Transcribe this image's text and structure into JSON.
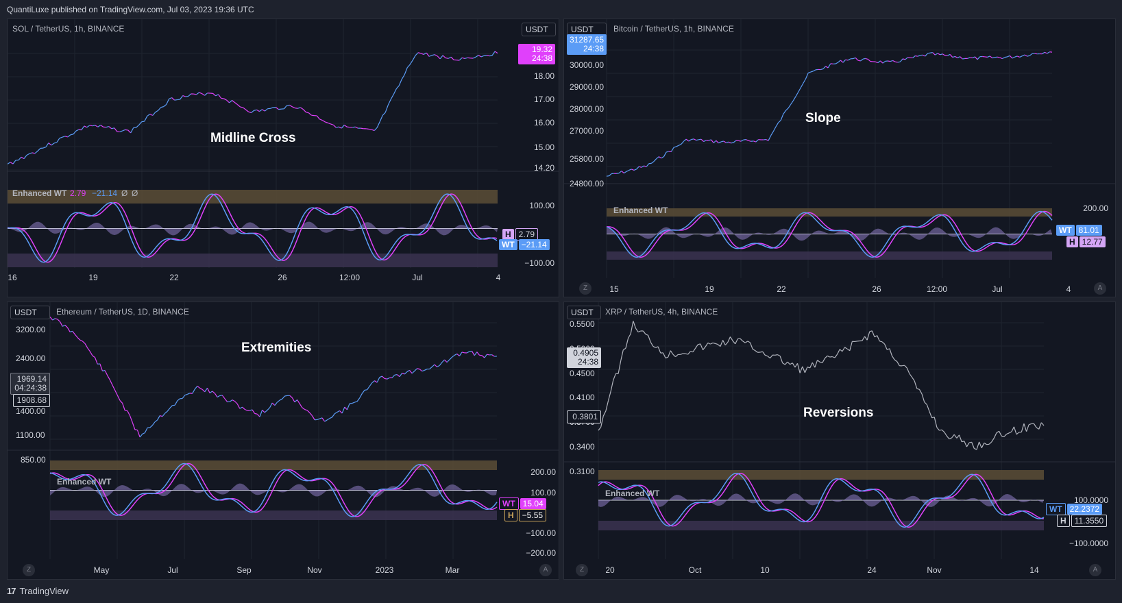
{
  "header": {
    "published": "QuantiLuxe published on TradingView.com, Jul 03, 2023 19:36 UTC"
  },
  "footer": {
    "logo": "17",
    "brand": "TradingView"
  },
  "colors": {
    "bg": "#131722",
    "grid": "#1f2430",
    "bull": "#5b9cf6",
    "bear": "#e040fb",
    "wt": "#5b9cf6",
    "sig": "#e040fb",
    "histUp": "#8e7cc3",
    "histDn": "#c9a45b",
    "ob": "#5c4d36",
    "os": "#3b3350"
  },
  "panels": [
    {
      "id": "sol",
      "title": "SOL / TetherUS, 1h, BINANCE",
      "currency": "USDT",
      "annotation": "Midline Cross",
      "indicator_title": "Enhanced WT",
      "indicator_values": {
        "v1": "2.79",
        "v2": "−21.14",
        "v3": "Ø",
        "v4": "Ø"
      },
      "price_ticks": [
        "18.00",
        "17.00",
        "16.00",
        "15.00",
        "14.20"
      ],
      "price_label": {
        "price": "19.32",
        "time": "24:38"
      },
      "ind_ticks": [
        "100.00",
        "−100.00"
      ],
      "tags": [
        {
          "key": "H",
          "value": "2.79"
        },
        {
          "key": "WT",
          "value": "−21.14"
        }
      ],
      "x_ticks": [
        "16",
        "19",
        "22",
        "26",
        "12:00",
        "Jul",
        "4"
      ]
    },
    {
      "id": "btc",
      "title": "Bitcoin / TetherUS, 1h, BINANCE",
      "currency": "USDT",
      "annotation": "Slope",
      "indicator_title": "Enhanced WT",
      "price_ticks": [
        "30000.00",
        "29000.00",
        "28000.00",
        "27000.00",
        "25800.00",
        "24800.00"
      ],
      "price_label": {
        "price": "31287.65",
        "time": "24:38"
      },
      "ind_ticks": [
        "200.00"
      ],
      "tags": [
        {
          "key": "WT",
          "value": "81.01"
        },
        {
          "key": "H",
          "value": "12.77"
        }
      ],
      "x_ticks": [
        "15",
        "19",
        "22",
        "26",
        "12:00",
        "Jul",
        "4"
      ]
    },
    {
      "id": "eth",
      "title": "Ethereum / TetherUS, 1D, BINANCE",
      "currency": "USDT",
      "annotation": "Extremities",
      "indicator_title": "Enhanced WT",
      "price_ticks": [
        "3200.00",
        "2400.00",
        "1400.00",
        "1100.00",
        "850.00"
      ],
      "price_label": {
        "price": "1969.14",
        "time": "04:24:38",
        "extra": "1908.68"
      },
      "ind_ticks": [
        "200.00",
        "100.00",
        "−100.00",
        "−200.00"
      ],
      "tags": [
        {
          "key": "WT",
          "value": "15.04"
        },
        {
          "key": "H",
          "value": "−5.55"
        }
      ],
      "x_ticks": [
        "May",
        "Jul",
        "Sep",
        "Nov",
        "2023",
        "Mar"
      ]
    },
    {
      "id": "xrp",
      "title": "XRP / TetherUS, 4h, BINANCE",
      "currency": "USDT",
      "annotation": "Reversions",
      "indicator_title": "Enhanced WT",
      "price_ticks": [
        "0.5500",
        "0.5000",
        "0.4500",
        "0.4100",
        "0.3700",
        "0.3400",
        "0.3100"
      ],
      "price_label": {
        "price": "0.4905",
        "time": "24:38",
        "extra": "0.3801"
      },
      "ind_ticks": [
        "100.0000",
        "−100.0000"
      ],
      "tags": [
        {
          "key": "WT",
          "value": "22.2372"
        },
        {
          "key": "H",
          "value": "11.3550"
        }
      ],
      "x_ticks": [
        "20",
        "Oct",
        "10",
        "24",
        "Nov",
        "14"
      ]
    }
  ],
  "buttons": {
    "z": "Z",
    "a": "A"
  }
}
